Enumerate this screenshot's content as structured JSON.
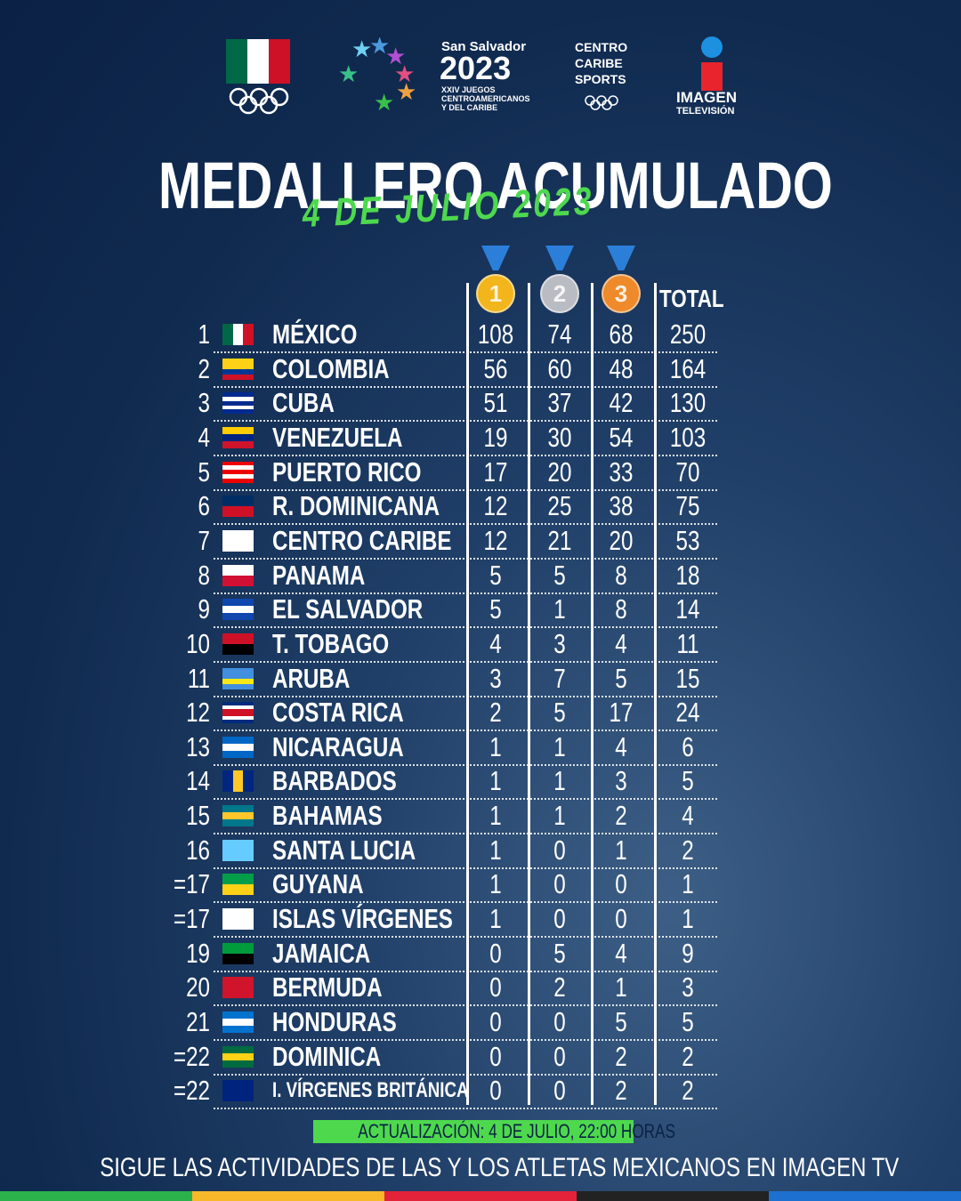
{
  "header": {
    "logos": {
      "games_city": "San Salvador",
      "games_year": "2023",
      "games_line1": "XXIV JUEGOS",
      "games_line2": "CENTROAMERICANOS",
      "games_line3": "Y DEL CARIBE",
      "centro1": "CENTRO",
      "centro2": "CARIBE",
      "centro3": "SPORTS",
      "imagen": "IMAGEN",
      "television": "TELEVISIÓN"
    },
    "title": "MEDALLERO ACUMULADO",
    "subtitle": "4 DE JULIO 2023"
  },
  "table": {
    "columns": [
      1,
      2,
      3,
      "TOTAL"
    ],
    "rows": [
      [
        1,
        "MÉXICO",
        108,
        74,
        68,
        250
      ],
      [
        2,
        "COLOMBIA",
        56,
        60,
        48,
        164
      ],
      [
        3,
        "CUBA",
        51,
        37,
        42,
        130
      ],
      [
        4,
        "VENEZUELA",
        19,
        30,
        54,
        103
      ],
      [
        5,
        "PUERTO RICO",
        17,
        20,
        33,
        70
      ],
      [
        6,
        "R. DOMINICANA",
        12,
        25,
        38,
        75
      ],
      [
        7,
        "CENTRO CARIBE",
        12,
        21,
        20,
        53
      ],
      [
        8,
        "PANAMA",
        5,
        5,
        8,
        18
      ],
      [
        9,
        "EL SALVADOR",
        5,
        1,
        8,
        14
      ],
      [
        10,
        "T. TOBAGO",
        4,
        3,
        4,
        11
      ],
      [
        11,
        "ARUBA",
        3,
        7,
        5,
        15
      ],
      [
        12,
        "COSTA RICA",
        2,
        5,
        17,
        24
      ],
      [
        13,
        "NICARAGUA",
        1,
        1,
        4,
        6
      ],
      [
        14,
        "BARBADOS",
        1,
        1,
        3,
        5
      ],
      [
        15,
        "BAHAMAS",
        1,
        1,
        2,
        4
      ],
      [
        16,
        "SANTA LUCIA",
        1,
        0,
        1,
        2
      ],
      [
        "=17",
        "GUYANA",
        1,
        0,
        0,
        1
      ],
      [
        "=17",
        "ISLAS VÍRGENES",
        1,
        0,
        0,
        1
      ],
      [
        19,
        "JAMAICA",
        0,
        5,
        4,
        9
      ],
      [
        20,
        "BERMUDA",
        0,
        2,
        1,
        3
      ],
      [
        21,
        "HONDURAS",
        0,
        0,
        5,
        5
      ],
      [
        "=22",
        "DOMINICA",
        0,
        0,
        2,
        2
      ],
      [
        "=22",
        "I. VÍRGENES BRITÁNICA",
        0,
        0,
        2,
        2
      ]
    ]
  },
  "footer": {
    "update": "ACTUALIZACIÓN: 4 DE JULIO, 22:00 HORAS",
    "cta": "SIGUE LAS ACTIVIDADES DE LAS Y LOS  ATLETAS MEXICANOS EN IMAGEN TV"
  }
}
